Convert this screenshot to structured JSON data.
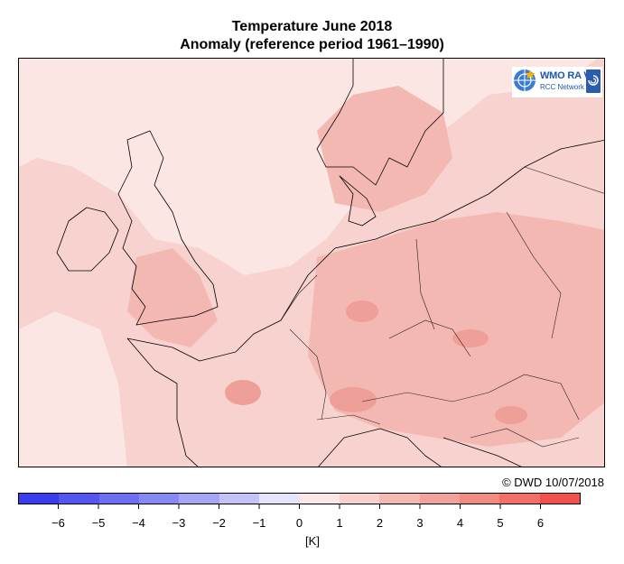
{
  "title": {
    "line1": "Temperature June 2018",
    "line2": "Anomaly (reference period 1961–1990)"
  },
  "credit": "© DWD 10/07/2018",
  "logo": {
    "line1": "WMO RA VI",
    "line2": "RCC Network",
    "badge": "DWD",
    "icon": "un-globe-icon"
  },
  "colorbar": {
    "unit": "[K]",
    "tick_labels": [
      "−6",
      "−5",
      "−4",
      "−3",
      "−2",
      "−1",
      "0",
      "1",
      "2",
      "3",
      "4",
      "5",
      "6"
    ],
    "bins": [
      {
        "from": -7,
        "to": -6,
        "color": "#3b3bf2"
      },
      {
        "from": -6,
        "to": -5,
        "color": "#5555f2"
      },
      {
        "from": -5,
        "to": -4,
        "color": "#6e6ef3"
      },
      {
        "from": -4,
        "to": -3,
        "color": "#8888f4"
      },
      {
        "from": -3,
        "to": -2,
        "color": "#a5a5f6"
      },
      {
        "from": -2,
        "to": -1,
        "color": "#c3c3f8"
      },
      {
        "from": -1,
        "to": 0,
        "color": "#e4e4fa"
      },
      {
        "from": 0,
        "to": 1,
        "color": "#fbe8e6"
      },
      {
        "from": 1,
        "to": 2,
        "color": "#f8d0cd"
      },
      {
        "from": 2,
        "to": 3,
        "color": "#f5b9b4"
      },
      {
        "from": 3,
        "to": 4,
        "color": "#f3a29b"
      },
      {
        "from": 4,
        "to": 5,
        "color": "#f28a82"
      },
      {
        "from": 5,
        "to": 6,
        "color": "#f26e66"
      },
      {
        "from": 6,
        "to": 7,
        "color": "#f2504a"
      }
    ]
  },
  "map": {
    "region": "Western and Central Europe",
    "background_color": "#f8d2ce",
    "dominant_anomaly_class": "1 to 2 K",
    "coastline_color": "#000000"
  }
}
